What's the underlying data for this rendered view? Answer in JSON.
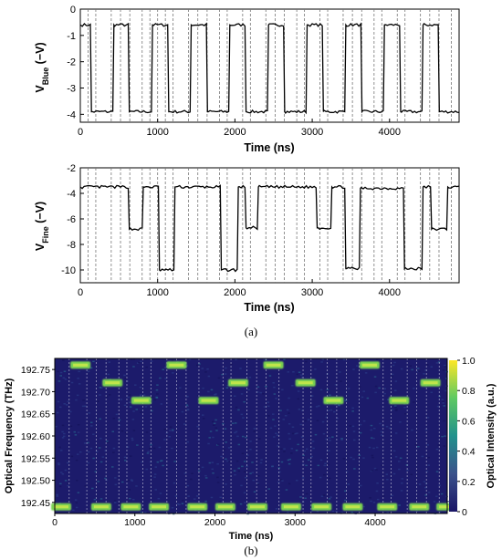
{
  "figure": {
    "sub_a": "(a)",
    "sub_b": "(b)"
  },
  "chart_data": [
    {
      "type": "line",
      "panel": "a-top",
      "ylabel_main": "V",
      "ylabel_sub": "Blue",
      "ylabel_rest": " (−V)",
      "xlabel": "Time (ns)",
      "xlim": [
        0,
        4900
      ],
      "ylim": [
        -4.3,
        0
      ],
      "xticks": [
        0,
        1000,
        2000,
        3000,
        4000
      ],
      "yticks": [
        0,
        -1,
        -2,
        -3,
        -4
      ],
      "grid_x_dashed": [
        100,
        200,
        400,
        520,
        640,
        800,
        900,
        1000,
        1100,
        1200,
        1400,
        1520,
        1640,
        1800,
        1900,
        2100,
        2200,
        2400,
        2520,
        2640,
        2800,
        2900,
        3100,
        3200,
        3400,
        3520,
        3640,
        3800,
        3900,
        4100,
        4200,
        4400,
        4520,
        4640,
        4800
      ],
      "high_level": -0.6,
      "low_level": -3.9,
      "segments": [
        {
          "start": 0,
          "end": 130,
          "level": -0.6
        },
        {
          "start": 130,
          "end": 420,
          "level": -3.9
        },
        {
          "start": 420,
          "end": 620,
          "level": -0.6
        },
        {
          "start": 620,
          "end": 920,
          "level": -3.9
        },
        {
          "start": 920,
          "end": 1130,
          "level": -0.6
        },
        {
          "start": 1130,
          "end": 1420,
          "level": -3.9
        },
        {
          "start": 1420,
          "end": 1630,
          "level": -0.6
        },
        {
          "start": 1630,
          "end": 1920,
          "level": -3.9
        },
        {
          "start": 1920,
          "end": 2130,
          "level": -0.6
        },
        {
          "start": 2130,
          "end": 2420,
          "level": -3.9
        },
        {
          "start": 2420,
          "end": 2630,
          "level": -0.6
        },
        {
          "start": 2630,
          "end": 2920,
          "level": -3.9
        },
        {
          "start": 2920,
          "end": 3130,
          "level": -0.6
        },
        {
          "start": 3130,
          "end": 3420,
          "level": -3.9
        },
        {
          "start": 3420,
          "end": 3630,
          "level": -0.6
        },
        {
          "start": 3630,
          "end": 3920,
          "level": -3.9
        },
        {
          "start": 3920,
          "end": 4130,
          "level": -0.6
        },
        {
          "start": 4130,
          "end": 4420,
          "level": -3.9
        },
        {
          "start": 4420,
          "end": 4630,
          "level": -0.6
        },
        {
          "start": 4630,
          "end": 4920,
          "level": -3.9
        }
      ]
    },
    {
      "type": "line",
      "panel": "a-bottom",
      "ylabel_main": "V",
      "ylabel_sub": "Fine",
      "ylabel_rest": " (−V)",
      "xlabel": "Time (ns)",
      "xlim": [
        0,
        4900
      ],
      "ylim": [
        -11,
        -2
      ],
      "xticks": [
        0,
        1000,
        2000,
        3000,
        4000
      ],
      "yticks": [
        -2,
        -4,
        -6,
        -8,
        -10
      ],
      "grid_x_dashed": [
        100,
        200,
        400,
        520,
        640,
        800,
        900,
        1000,
        1100,
        1200,
        1400,
        1520,
        1640,
        1800,
        1900,
        2100,
        2200,
        2400,
        2520,
        2640,
        2800,
        2900,
        3100,
        3200,
        3400,
        3520,
        3640,
        3800,
        3900,
        4100,
        4200,
        4400,
        4520,
        4640,
        4800
      ],
      "segments": [
        {
          "start": 0,
          "end": 620,
          "level": -3.5
        },
        {
          "start": 620,
          "end": 800,
          "level": -6.8
        },
        {
          "start": 800,
          "end": 1010,
          "level": -3.5
        },
        {
          "start": 1010,
          "end": 1210,
          "level": -10.0
        },
        {
          "start": 1210,
          "end": 1810,
          "level": -3.5
        },
        {
          "start": 1810,
          "end": 2030,
          "level": -10.0
        },
        {
          "start": 2030,
          "end": 2130,
          "level": -3.5
        },
        {
          "start": 2130,
          "end": 2290,
          "level": -6.7
        },
        {
          "start": 2290,
          "end": 3050,
          "level": -3.5
        },
        {
          "start": 3050,
          "end": 3240,
          "level": -6.7
        },
        {
          "start": 3240,
          "end": 3420,
          "level": -3.5
        },
        {
          "start": 3420,
          "end": 3610,
          "level": -9.9
        },
        {
          "start": 3610,
          "end": 4180,
          "level": -3.6
        },
        {
          "start": 4180,
          "end": 4420,
          "level": -9.9
        },
        {
          "start": 4420,
          "end": 4530,
          "level": -3.5
        },
        {
          "start": 4530,
          "end": 4740,
          "level": -6.8
        },
        {
          "start": 4740,
          "end": 4920,
          "level": -3.5
        }
      ]
    },
    {
      "type": "heatmap",
      "panel": "b",
      "xlabel": "Time (ns)",
      "ylabel": "Optical Frequency (THz)",
      "colorbar_label": "Optical Intensity (a.u.)",
      "xlim": [
        0,
        4900
      ],
      "ylim": [
        192.425,
        192.775
      ],
      "xticks": [
        0,
        1000,
        2000,
        3000,
        4000
      ],
      "yticks": [
        192.75,
        192.7,
        192.65,
        192.6,
        192.55,
        192.5,
        192.45
      ],
      "ytick_labels": [
        "192.75",
        "192.70",
        "192.65",
        "192.60",
        "192.55",
        "192.50",
        "192.45"
      ],
      "colorbar_ticks": [
        0,
        0.2,
        0.4,
        0.6,
        0.8,
        1.0
      ],
      "colorbar_tick_labels": [
        "0",
        "0.2",
        "0.4",
        "0.6",
        "0.8",
        "1.0"
      ],
      "colors": {
        "low": "#1a1566",
        "mid": "#21918c",
        "high": "#fde725",
        "spot": "#7ad151"
      },
      "spots": [
        {
          "t": 80,
          "freq": 192.44
        },
        {
          "t": 320,
          "freq": 192.76
        },
        {
          "t": 580,
          "freq": 192.44
        },
        {
          "t": 720,
          "freq": 192.72
        },
        {
          "t": 950,
          "freq": 192.44
        },
        {
          "t": 1080,
          "freq": 192.68
        },
        {
          "t": 1300,
          "freq": 192.44
        },
        {
          "t": 1520,
          "freq": 192.76
        },
        {
          "t": 1780,
          "freq": 192.44
        },
        {
          "t": 1920,
          "freq": 192.68
        },
        {
          "t": 2130,
          "freq": 192.44
        },
        {
          "t": 2290,
          "freq": 192.72
        },
        {
          "t": 2530,
          "freq": 192.44
        },
        {
          "t": 2730,
          "freq": 192.76
        },
        {
          "t": 2950,
          "freq": 192.44
        },
        {
          "t": 3130,
          "freq": 192.72
        },
        {
          "t": 3330,
          "freq": 192.44
        },
        {
          "t": 3480,
          "freq": 192.68
        },
        {
          "t": 3720,
          "freq": 192.44
        },
        {
          "t": 3930,
          "freq": 192.76
        },
        {
          "t": 4150,
          "freq": 192.44
        },
        {
          "t": 4300,
          "freq": 192.68
        },
        {
          "t": 4550,
          "freq": 192.44
        },
        {
          "t": 4690,
          "freq": 192.72
        },
        {
          "t": 4890,
          "freq": 192.44
        }
      ],
      "grid_x_dashed": [
        180,
        400,
        520,
        640,
        800,
        900,
        1100,
        1200,
        1400,
        1520,
        1640,
        1800,
        2100,
        2200,
        2400,
        2520,
        2640,
        2800,
        3100,
        3200,
        3400,
        3520,
        3640,
        3800,
        4100,
        4200,
        4400,
        4520,
        4640,
        4800
      ]
    }
  ]
}
